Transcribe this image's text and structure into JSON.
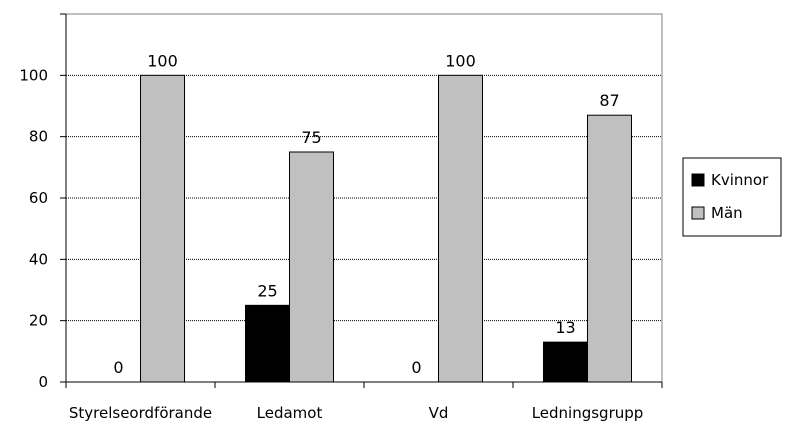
{
  "chart_data": {
    "type": "bar",
    "categories": [
      "Styrelseordförande",
      "Ledamot",
      "Vd",
      "Ledningsgrupp"
    ],
    "series": [
      {
        "name": "Kvinnor",
        "values": [
          0,
          25,
          0,
          13
        ],
        "color": "#000000"
      },
      {
        "name": "Män",
        "values": [
          100,
          75,
          100,
          87
        ],
        "color": "#c0c0c0"
      }
    ],
    "data_labels": [
      [
        "0",
        "25",
        "0",
        "13"
      ],
      [
        "100",
        "75",
        "100",
        "87"
      ]
    ],
    "yticks": [
      0,
      20,
      40,
      60,
      80,
      100
    ],
    "ylim": [
      0,
      120
    ],
    "grid": true,
    "legend_position": "right",
    "title": "",
    "xlabel": "",
    "ylabel": ""
  }
}
